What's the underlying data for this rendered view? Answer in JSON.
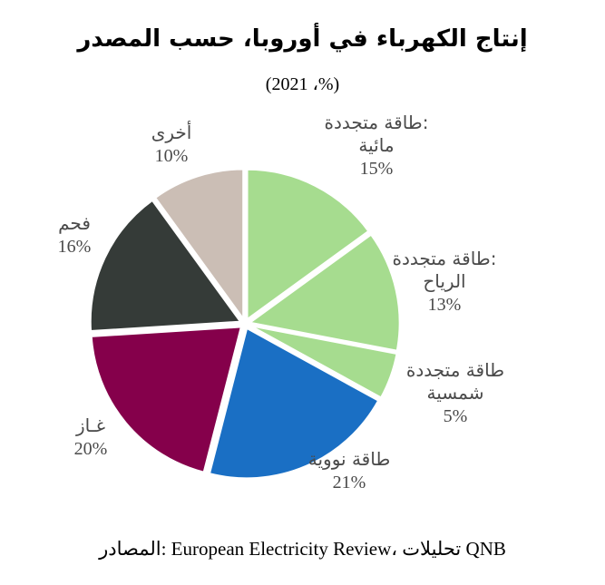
{
  "title": "إنتاج الكهرباء في أوروبا، حسب المصدر",
  "subtitle": "(2021 ،%)",
  "source": "المصادر: European Electricity Review، تحليلات QNB",
  "chart_data": {
    "type": "pie",
    "title": "إنتاج الكهرباء في أوروبا، حسب المصدر",
    "subtitle": "(2021 ،%)",
    "unit": "%",
    "start": "12 o'clock",
    "direction": "clockwise",
    "slices": [
      {
        "label_lines": [
          "طاقة متجددة:",
          "مائية"
        ],
        "value": 15,
        "display": "15%",
        "color": "#a6dc8f"
      },
      {
        "label_lines": [
          "طاقة متجددة:",
          "الرياح"
        ],
        "value": 13,
        "display": "13%",
        "color": "#a6dc8f"
      },
      {
        "label_lines": [
          "طاقة متجددة",
          "شمسية"
        ],
        "value": 5,
        "display": "5%",
        "color": "#a6dc8f"
      },
      {
        "label_lines": [
          "طاقة نووية"
        ],
        "value": 21,
        "display": "21%",
        "color": "#1a6fc4"
      },
      {
        "label_lines": [
          "غـاز"
        ],
        "value": 20,
        "display": "20%",
        "color": "#85004b"
      },
      {
        "label_lines": [
          "فحم"
        ],
        "value": 16,
        "display": "16%",
        "color": "#353b38"
      },
      {
        "label_lines": [
          "أخرى"
        ],
        "value": 10,
        "display": "10%",
        "color": "#cbbeb5"
      }
    ]
  }
}
